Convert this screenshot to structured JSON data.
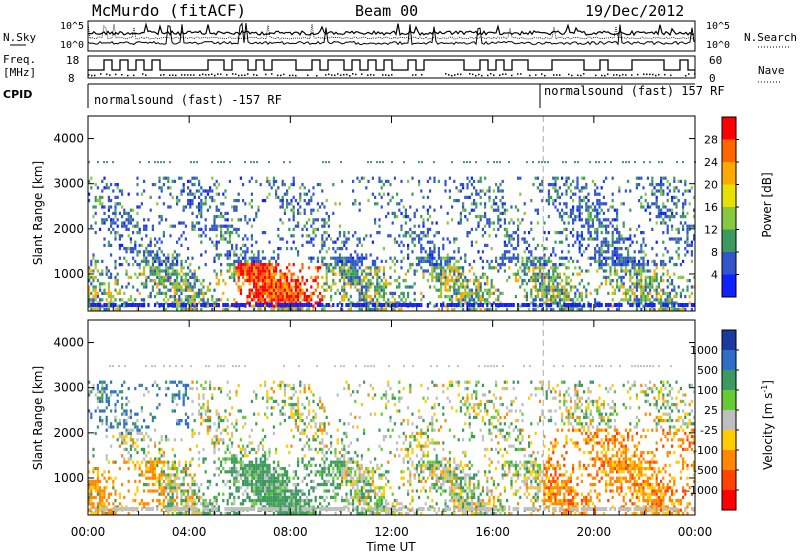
{
  "header": {
    "station": "McMurdo (fitACF)",
    "beam": "Beam 00",
    "date": "19/Dec/2012"
  },
  "top_panels": {
    "nsky_label": "N.Sky",
    "nsearch_label": "N.Search",
    "freq_label": "Freq.",
    "freq_unit": "[MHz]",
    "nave_label": "Nave",
    "cpid_label": "CPID",
    "noise_ticks_left": [
      "10^5",
      "10^0"
    ],
    "noise_ticks_right": [
      "10^5",
      "10^0"
    ],
    "freq_ticks": [
      "18",
      "8"
    ],
    "nave_ticks": [
      "60",
      "0"
    ],
    "cpid_text_1": "normalsound (fast) -157 RF",
    "cpid_text_2": "normalsound (fast) 157 RF"
  },
  "chart_data": [
    {
      "type": "heatmap",
      "panel": "power",
      "ylabel": "Slant Range [km]",
      "ylim": [
        180,
        4500
      ],
      "yticks": [
        "4000",
        "3000",
        "2000",
        "1000"
      ],
      "colorbar_label": "Power [dB]",
      "colorbar_ticks": [
        "28",
        "24",
        "20",
        "16",
        "12",
        "8",
        "4"
      ],
      "colorbar_colors": [
        "#ff0000",
        "#ff6600",
        "#ffaa00",
        "#e8e000",
        "#88c840",
        "#3c9a60",
        "#3355cc",
        "#1020ff"
      ]
    },
    {
      "type": "heatmap",
      "panel": "velocity",
      "ylabel": "Slant Range [km]",
      "ylim": [
        180,
        4500
      ],
      "yticks": [
        "4000",
        "3000",
        "2000",
        "1000"
      ],
      "colorbar_label": "Velocity [m s",
      "colorbar_label_sup": "-1",
      "colorbar_label_end": "]",
      "colorbar_ticks": [
        "1000",
        "500",
        "100",
        "25",
        "-25",
        "-100",
        "-500",
        "-1000"
      ],
      "colorbar_colors": [
        "#1a3aa0",
        "#2f6fc8",
        "#3c9a60",
        "#66cc33",
        "#bfbfbf",
        "#ffcc00",
        "#ff8800",
        "#ff4400",
        "#ff0000"
      ]
    }
  ],
  "xaxis": {
    "label": "Time UT",
    "ticks": [
      "00:00",
      "04:00",
      "08:00",
      "12:00",
      "16:00",
      "20:00",
      "00:00"
    ]
  }
}
